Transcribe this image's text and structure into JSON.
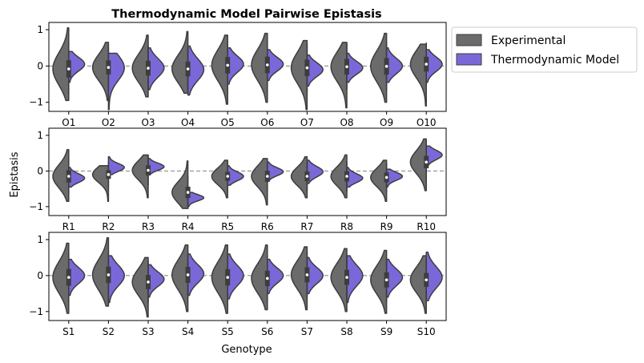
{
  "chart_data": {
    "type": "violin",
    "title": "Thermodynamic Model Pairwise Epistasis",
    "xlabel": "Genotype",
    "ylabel": "Epistasis",
    "ylim": [
      -1.25,
      1.2
    ],
    "yticks": [
      -1,
      0,
      1
    ],
    "reference_line": 0,
    "split": true,
    "legend": {
      "placement": "outside-right-top",
      "entries": [
        {
          "name": "Experimental",
          "color": "#6b6b6b"
        },
        {
          "name": "Thermodynamic Model",
          "color": "#7b68d8"
        }
      ]
    },
    "panels": [
      {
        "categories": [
          "O1",
          "O2",
          "O3",
          "O4",
          "O5",
          "O6",
          "O7",
          "O8",
          "O9",
          "O10"
        ],
        "series": [
          {
            "name": "Experimental",
            "median": [
              -0.08,
              -0.04,
              -0.06,
              -0.08,
              0.02,
              0.03,
              -0.05,
              -0.02,
              -0.01,
              0.05
            ],
            "min": [
              -0.95,
              -0.95,
              -0.85,
              -0.75,
              -1.05,
              -1.0,
              -1.2,
              -1.15,
              -1.0,
              -1.1
            ],
            "max": [
              1.05,
              0.65,
              0.85,
              0.95,
              0.85,
              0.9,
              0.7,
              0.65,
              0.9,
              0.6
            ]
          },
          {
            "name": "Thermodynamic Model",
            "median": [
              0.05,
              -0.05,
              -0.05,
              -0.1,
              0.05,
              0.05,
              -0.1,
              -0.05,
              0.0,
              0.05
            ],
            "min": [
              -0.45,
              -1.2,
              -0.65,
              -0.8,
              -0.5,
              -0.4,
              -0.55,
              -0.45,
              -0.45,
              -0.45
            ],
            "max": [
              0.4,
              0.35,
              0.5,
              0.55,
              0.5,
              0.45,
              0.3,
              0.35,
              0.5,
              0.45
            ]
          }
        ]
      },
      {
        "categories": [
          "R1",
          "R2",
          "R3",
          "R4",
          "R5",
          "R6",
          "R7",
          "R8",
          "R9",
          "R10"
        ],
        "series": [
          {
            "name": "Experimental",
            "median": [
              -0.15,
              -0.1,
              0.02,
              -0.6,
              -0.15,
              -0.15,
              -0.15,
              -0.15,
              -0.18,
              0.25
            ],
            "min": [
              -0.85,
              -0.85,
              -0.75,
              -1.05,
              -0.75,
              -0.95,
              -0.75,
              -0.75,
              -0.85,
              -0.55
            ],
            "max": [
              0.6,
              0.15,
              0.45,
              0.28,
              0.3,
              0.35,
              0.4,
              0.45,
              0.3,
              0.9
            ]
          },
          {
            "name": "Thermodynamic Model",
            "median": [
              -0.2,
              0.1,
              0.12,
              -0.75,
              -0.15,
              -0.02,
              -0.02,
              -0.2,
              -0.15,
              0.45
            ],
            "min": [
              -0.45,
              -0.1,
              -0.1,
              -1.0,
              -0.4,
              -0.25,
              -0.35,
              -0.45,
              -0.45,
              0.1
            ],
            "max": [
              0.1,
              0.4,
              0.35,
              -0.6,
              0.15,
              0.25,
              0.3,
              0.1,
              0.05,
              0.7
            ]
          }
        ]
      },
      {
        "categories": [
          "S1",
          "S2",
          "S3",
          "S4",
          "S5",
          "S6",
          "S7",
          "S8",
          "S9",
          "S10"
        ],
        "series": [
          {
            "name": "Experimental",
            "median": [
              -0.05,
              0.02,
              -0.18,
              0.02,
              -0.05,
              -0.08,
              0.02,
              -0.05,
              -0.12,
              -0.12
            ],
            "min": [
              -1.05,
              -0.85,
              -1.15,
              -1.0,
              -1.05,
              -0.95,
              -0.95,
              -1.0,
              -1.05,
              -1.05
            ],
            "max": [
              0.9,
              1.05,
              0.5,
              0.85,
              0.85,
              0.85,
              0.8,
              0.75,
              0.7,
              0.55
            ]
          },
          {
            "name": "Thermodynamic Model",
            "median": [
              0.0,
              0.0,
              -0.1,
              0.05,
              0.0,
              0.0,
              0.0,
              0.0,
              -0.05,
              -0.05
            ],
            "min": [
              -0.55,
              -0.75,
              -0.6,
              -0.55,
              -0.65,
              -0.5,
              -0.5,
              -0.75,
              -0.6,
              -0.7
            ],
            "max": [
              0.45,
              0.55,
              0.3,
              0.6,
              0.6,
              0.45,
              0.5,
              0.55,
              0.45,
              0.65
            ]
          }
        ]
      }
    ]
  }
}
